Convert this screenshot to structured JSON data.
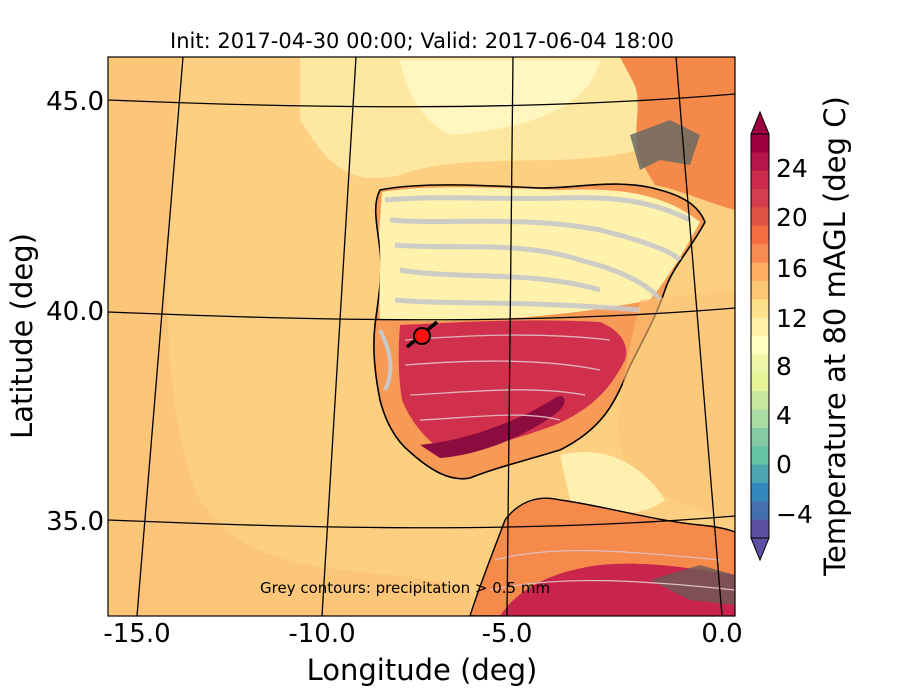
{
  "title": "Init: 2017-04-30 00:00; Valid: 2017-06-04 18:00",
  "axes": {
    "xlabel": "Longitude (deg)",
    "ylabel": "Latitude (deg)",
    "xticks": [
      "-15.0",
      "-10.0",
      "-5.0",
      "0.0"
    ],
    "yticks": [
      "45.0",
      "40.0",
      "35.0"
    ]
  },
  "annotation": "Grey contours: precipitation > 0.5 mm",
  "colorbar": {
    "label": "Temperature at 80 mAGL (deg C)",
    "ticks": [
      "24",
      "20",
      "16",
      "12",
      "8",
      "4",
      "0",
      "−4"
    ],
    "colors_top_to_bottom": [
      "#9e0142",
      "#b5154a",
      "#cc2a4c",
      "#d53e4f",
      "#e05345",
      "#f46d43",
      "#f88b51",
      "#fdae61",
      "#fdc776",
      "#fee08b",
      "#fff0a8",
      "#ffffbf",
      "#eef7a8",
      "#e6f598",
      "#c6e89c",
      "#abdda4",
      "#84cba5",
      "#66c2a5",
      "#4ea6b2",
      "#3288bd",
      "#4470b0",
      "#5e4fa2"
    ]
  },
  "colors": {
    "ocean": "#fdcf80",
    "land_cool": "#fff2ad",
    "land_warm": "#f58a4b",
    "land_hot": "#c9244c",
    "precip_grey": "#c0c0c0",
    "marker": "#ff1010"
  }
}
